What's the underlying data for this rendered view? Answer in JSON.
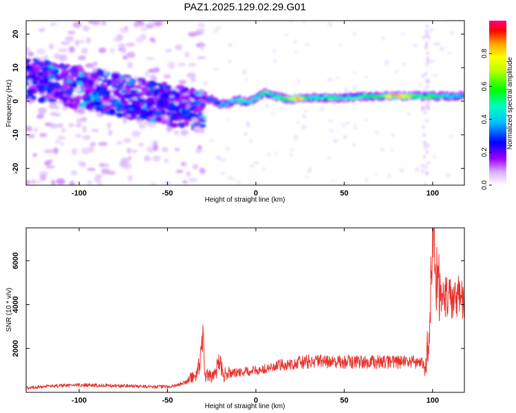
{
  "figure": {
    "title": "PAZ1.2025.129.02.29.G01"
  },
  "chart_data": [
    {
      "type": "heatmap",
      "xlabel": "Height of straight line (km)",
      "ylabel": "Frequency (Hz)",
      "xlim": [
        -130,
        118
      ],
      "ylim": [
        -25,
        24
      ],
      "xticks": [
        -100,
        -50,
        0,
        50,
        100
      ],
      "yticks": [
        -20,
        -10,
        0,
        10,
        20
      ],
      "colorbar": {
        "label": "Normalized spectral amplitude",
        "range": [
          0,
          1
        ],
        "ticks": [
          "0.0",
          "0.2",
          "0.4",
          "0.6",
          "0.8"
        ],
        "colormap": [
          "#ffffff",
          "#a000ff",
          "#0000ff",
          "#00ffff",
          "#00ff00",
          "#ffff00",
          "#ff0000",
          "#ff0080"
        ]
      },
      "ridge": [
        {
          "x": -30,
          "y": 1,
          "a": 0.25
        },
        {
          "x": -25,
          "y": 0.5,
          "a": 0.3
        },
        {
          "x": -20,
          "y": -1,
          "a": 0.35
        },
        {
          "x": -15,
          "y": -0.5,
          "a": 0.4
        },
        {
          "x": -10,
          "y": 0.5,
          "a": 0.45
        },
        {
          "x": -5,
          "y": -0.5,
          "a": 0.45
        },
        {
          "x": 0,
          "y": 1,
          "a": 0.4
        },
        {
          "x": 5,
          "y": 2.5,
          "a": 0.5
        },
        {
          "x": 10,
          "y": 1.5,
          "a": 0.45
        },
        {
          "x": 15,
          "y": 1,
          "a": 0.5
        },
        {
          "x": 20,
          "y": 0.5,
          "a": 0.7
        },
        {
          "x": 25,
          "y": 1,
          "a": 0.85
        },
        {
          "x": 30,
          "y": 1,
          "a": 0.45
        },
        {
          "x": 40,
          "y": 1,
          "a": 0.5
        },
        {
          "x": 50,
          "y": 1,
          "a": 0.45
        },
        {
          "x": 60,
          "y": 1.5,
          "a": 0.5
        },
        {
          "x": 70,
          "y": 1.5,
          "a": 0.55
        },
        {
          "x": 78,
          "y": 1.5,
          "a": 0.85
        },
        {
          "x": 85,
          "y": 1.5,
          "a": 0.75
        },
        {
          "x": 92,
          "y": 1.5,
          "a": 0.5
        },
        {
          "x": 100,
          "y": 1.5,
          "a": 0.55
        },
        {
          "x": 110,
          "y": 1.5,
          "a": 0.4
        },
        {
          "x": 118,
          "y": 1.5,
          "a": 0.4
        }
      ],
      "scatter_region": {
        "x": [
          -130,
          -30
        ],
        "y": [
          -15,
          15
        ],
        "center_start": 7,
        "center_end": -3
      }
    },
    {
      "type": "line",
      "xlabel": "Height of straight line (km)",
      "ylabel": "SNR (10 * v/v)",
      "xlim": [
        -130,
        118
      ],
      "ylim": [
        0,
        7500
      ],
      "xticks": [
        -100,
        -50,
        0,
        50,
        100
      ],
      "yticks": [
        2000,
        4000,
        6000
      ],
      "line_color": "#e8322d",
      "series": [
        {
          "values": [
            [
              -130,
              200
            ],
            [
              -120,
              260
            ],
            [
              -110,
              300
            ],
            [
              -100,
              330
            ],
            [
              -90,
              320
            ],
            [
              -80,
              300
            ],
            [
              -70,
              290
            ],
            [
              -60,
              260
            ],
            [
              -50,
              250
            ],
            [
              -45,
              320
            ],
            [
              -40,
              450
            ],
            [
              -36,
              700
            ],
            [
              -33,
              900
            ],
            [
              -31,
              1600
            ],
            [
              -30,
              2850
            ],
            [
              -29,
              800
            ],
            [
              -25,
              700
            ],
            [
              -22,
              1100
            ],
            [
              -20,
              1400
            ],
            [
              -18,
              800
            ],
            [
              -15,
              850
            ],
            [
              -10,
              900
            ],
            [
              -5,
              950
            ],
            [
              0,
              1000
            ],
            [
              5,
              1050
            ],
            [
              10,
              1150
            ],
            [
              15,
              1250
            ],
            [
              20,
              1300
            ],
            [
              25,
              1350
            ],
            [
              30,
              1400
            ],
            [
              40,
              1400
            ],
            [
              50,
              1380
            ],
            [
              60,
              1380
            ],
            [
              70,
              1380
            ],
            [
              80,
              1380
            ],
            [
              90,
              1380
            ],
            [
              94,
              1380
            ],
            [
              96,
              1100
            ],
            [
              97,
              2100
            ],
            [
              98,
              3200
            ],
            [
              99,
              4300
            ],
            [
              100,
              7600
            ],
            [
              101,
              5800
            ],
            [
              102,
              5000
            ],
            [
              104,
              4600
            ],
            [
              106,
              4400
            ],
            [
              110,
              4300
            ],
            [
              114,
              4350
            ],
            [
              118,
              4300
            ]
          ]
        }
      ]
    }
  ]
}
